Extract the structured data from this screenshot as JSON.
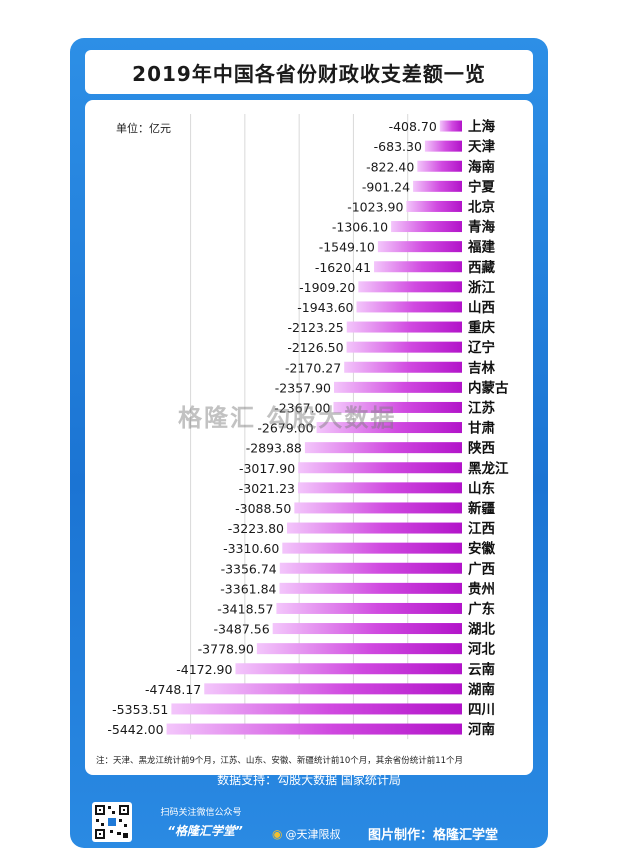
{
  "chart_data": {
    "type": "bar",
    "orientation": "horizontal",
    "title": "2019年中国各省份财政收支差额一览",
    "unit_label": "单位：亿元",
    "categories": [
      "上海",
      "天津",
      "海南",
      "宁夏",
      "北京",
      "青海",
      "福建",
      "西藏",
      "浙江",
      "山西",
      "重庆",
      "辽宁",
      "吉林",
      "内蒙古",
      "江苏",
      "甘肃",
      "陕西",
      "黑龙江",
      "山东",
      "新疆",
      "江西",
      "安徽",
      "广西",
      "贵州",
      "广东",
      "湖北",
      "河北",
      "云南",
      "湖南",
      "四川",
      "河南"
    ],
    "values": [
      -408.7,
      -683.3,
      -822.4,
      -901.24,
      -1023.9,
      -1306.1,
      -1549.1,
      -1620.41,
      -1909.2,
      -1943.6,
      -2123.25,
      -2126.5,
      -2170.27,
      -2357.9,
      -2367.0,
      -2679.0,
      -2893.88,
      -3017.9,
      -3021.23,
      -3088.5,
      -3223.8,
      -3310.6,
      -3356.74,
      -3361.84,
      -3418.57,
      -3487.56,
      -3778.9,
      -4172.9,
      -4748.17,
      -5353.51,
      -5442.0
    ],
    "value_labels": [
      "-408.70",
      "-683.30",
      "-822.40",
      "-901.24",
      "-1023.90",
      "-1306.10",
      "-1549.10",
      "-1620.41",
      "-1909.20",
      "-1943.60",
      "-2123.25",
      "-2126.50",
      "-2170.27",
      "-2357.90",
      "-2367.00",
      "-2679.00",
      "-2893.88",
      "-3017.90",
      "-3021.23",
      "-3088.50",
      "-3223.80",
      "-3310.60",
      "-3356.74",
      "-3361.84",
      "-3418.57",
      "-3487.56",
      "-3778.90",
      "-4172.90",
      "-4748.17",
      "-5353.51",
      "-5442.00"
    ],
    "xlim": [
      -5600,
      0
    ],
    "grid": true,
    "bar_color": "#c21fd6",
    "bar_color_light": "#f3c6fb"
  },
  "note": "注：天津、黑龙江统计前9个月，江苏、山东、安徽、新疆统计前10个月，其余省份统计前11个月",
  "source": "数据支持：勾股大数据  国家统计局",
  "footer": {
    "qr_caption": "扫码关注微信公众号",
    "qr_name": "“格隆汇学堂”",
    "weibo": "@天津限叔",
    "credit": "图片制作：格隆汇学堂"
  },
  "watermark": "格隆汇 勾股大数据",
  "colors": {
    "card_blue": "#1f7ad8",
    "bar": "#c21fd6"
  }
}
